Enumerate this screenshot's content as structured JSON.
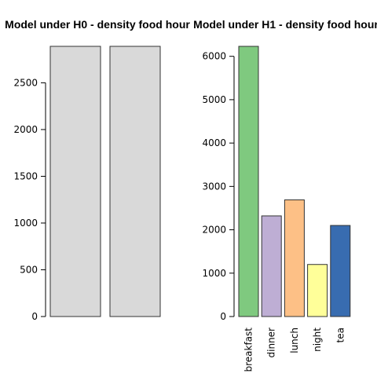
{
  "chart_data": [
    {
      "type": "bar",
      "title": "Model under H0 - density food hour",
      "categories": [
        "",
        ""
      ],
      "values": [
        2890,
        2890
      ],
      "colors": [
        "#d9d9d9",
        "#d9d9d9"
      ],
      "yticks": [
        0,
        500,
        1000,
        1500,
        2000,
        2500
      ],
      "ylim": [
        0,
        2890
      ],
      "xlabel": "",
      "ylabel": ""
    },
    {
      "type": "bar",
      "title": "Model under H1 - density food hour",
      "categories": [
        "breakfast",
        "dinner",
        "lunch",
        "night",
        "tea"
      ],
      "values": [
        6230,
        2320,
        2690,
        1200,
        2100
      ],
      "colors": [
        "#7fc97f",
        "#beaed4",
        "#fdc086",
        "#ffff99",
        "#386cb0"
      ],
      "yticks": [
        0,
        1000,
        2000,
        3000,
        4000,
        5000,
        6000
      ],
      "ylim": [
        0,
        6230
      ],
      "xlabel": "",
      "ylabel": ""
    }
  ]
}
